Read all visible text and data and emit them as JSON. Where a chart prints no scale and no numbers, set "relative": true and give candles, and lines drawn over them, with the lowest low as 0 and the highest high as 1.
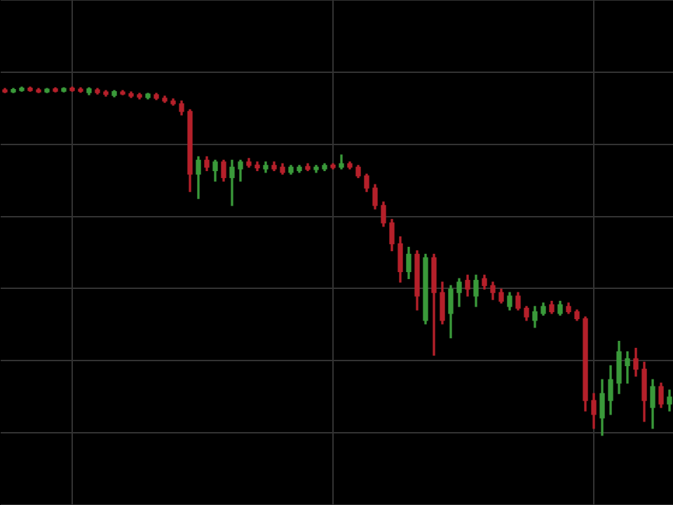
{
  "chart_data": {
    "type": "candlestick",
    "relative": true,
    "grid": true,
    "categories": [
      null,
      null,
      null,
      null,
      null,
      null,
      null,
      null,
      null,
      null,
      null,
      null,
      null,
      null,
      null,
      null,
      null,
      null,
      null,
      null,
      null,
      null,
      null,
      null,
      null,
      null,
      null,
      null,
      null,
      null,
      null,
      null,
      null,
      null,
      null,
      null,
      null,
      null,
      null,
      null,
      null,
      null,
      null,
      null,
      null,
      null,
      null,
      null,
      null,
      null,
      null,
      null,
      null,
      null,
      null,
      null,
      null,
      null,
      null,
      null,
      null,
      null,
      null,
      null,
      null,
      null,
      null,
      null,
      null,
      null,
      null,
      null,
      null,
      null,
      null,
      null,
      null,
      null,
      null,
      null
    ],
    "ohlc": [
      [
        0.992,
        0.996,
        0.984,
        0.986
      ],
      [
        0.986,
        0.996,
        0.984,
        0.993
      ],
      [
        0.99,
        1.0,
        0.988,
        0.997
      ],
      [
        0.997,
        1.0,
        0.988,
        0.99
      ],
      [
        0.992,
        0.996,
        0.984,
        0.986
      ],
      [
        0.986,
        0.996,
        0.984,
        0.994
      ],
      [
        0.995,
        0.998,
        0.986,
        0.988
      ],
      [
        0.988,
        0.998,
        0.986,
        0.996
      ],
      [
        0.997,
        1.0,
        0.988,
        0.99
      ],
      [
        0.994,
        0.998,
        0.985,
        0.988
      ],
      [
        0.984,
        0.998,
        0.978,
        0.995
      ],
      [
        0.992,
        0.996,
        0.98,
        0.984
      ],
      [
        0.986,
        0.99,
        0.974,
        0.979
      ],
      [
        0.976,
        0.99,
        0.972,
        0.987
      ],
      [
        0.986,
        0.99,
        0.978,
        0.98
      ],
      [
        0.981,
        0.986,
        0.97,
        0.974
      ],
      [
        0.978,
        0.982,
        0.966,
        0.971
      ],
      [
        0.97,
        0.982,
        0.966,
        0.98
      ],
      [
        0.978,
        0.982,
        0.964,
        0.968
      ],
      [
        0.968,
        0.974,
        0.956,
        0.96
      ],
      [
        0.96,
        0.966,
        0.948,
        0.952
      ],
      [
        0.952,
        0.96,
        0.92,
        0.93
      ],
      [
        0.93,
        0.935,
        0.7,
        0.75
      ],
      [
        0.75,
        0.8,
        0.68,
        0.79
      ],
      [
        0.79,
        0.8,
        0.76,
        0.77
      ],
      [
        0.76,
        0.79,
        0.73,
        0.785
      ],
      [
        0.785,
        0.79,
        0.73,
        0.74
      ],
      [
        0.74,
        0.79,
        0.66,
        0.77
      ],
      [
        0.765,
        0.79,
        0.73,
        0.785
      ],
      [
        0.785,
        0.795,
        0.77,
        0.775
      ],
      [
        0.776,
        0.785,
        0.76,
        0.768
      ],
      [
        0.765,
        0.785,
        0.755,
        0.775
      ],
      [
        0.775,
        0.785,
        0.76,
        0.765
      ],
      [
        0.77,
        0.78,
        0.75,
        0.755
      ],
      [
        0.755,
        0.775,
        0.75,
        0.77
      ],
      [
        0.76,
        0.775,
        0.755,
        0.77
      ],
      [
        0.772,
        0.78,
        0.76,
        0.764
      ],
      [
        0.763,
        0.775,
        0.755,
        0.77
      ],
      [
        0.765,
        0.78,
        0.76,
        0.775
      ],
      [
        0.776,
        0.78,
        0.765,
        0.769
      ],
      [
        0.77,
        0.805,
        0.765,
        0.78
      ],
      [
        0.78,
        0.785,
        0.765,
        0.77
      ],
      [
        0.77,
        0.775,
        0.74,
        0.745
      ],
      [
        0.745,
        0.75,
        0.7,
        0.71
      ],
      [
        0.71,
        0.72,
        0.65,
        0.66
      ],
      [
        0.66,
        0.67,
        0.6,
        0.61
      ],
      [
        0.61,
        0.62,
        0.53,
        0.55
      ],
      [
        0.55,
        0.57,
        0.44,
        0.47
      ],
      [
        0.47,
        0.54,
        0.45,
        0.52
      ],
      [
        0.52,
        0.53,
        0.36,
        0.4
      ],
      [
        0.33,
        0.52,
        0.32,
        0.51
      ],
      [
        0.51,
        0.52,
        0.23,
        0.41
      ],
      [
        0.41,
        0.44,
        0.32,
        0.33
      ],
      [
        0.35,
        0.43,
        0.28,
        0.42
      ],
      [
        0.41,
        0.45,
        0.37,
        0.44
      ],
      [
        0.445,
        0.46,
        0.4,
        0.42
      ],
      [
        0.4,
        0.46,
        0.37,
        0.445
      ],
      [
        0.45,
        0.46,
        0.42,
        0.43
      ],
      [
        0.43,
        0.44,
        0.39,
        0.41
      ],
      [
        0.41,
        0.42,
        0.38,
        0.385
      ],
      [
        0.37,
        0.41,
        0.36,
        0.4
      ],
      [
        0.4,
        0.41,
        0.36,
        0.365
      ],
      [
        0.365,
        0.37,
        0.33,
        0.34
      ],
      [
        0.33,
        0.37,
        0.31,
        0.355
      ],
      [
        0.35,
        0.38,
        0.345,
        0.37
      ],
      [
        0.375,
        0.385,
        0.35,
        0.355
      ],
      [
        0.35,
        0.385,
        0.345,
        0.375
      ],
      [
        0.37,
        0.38,
        0.35,
        0.355
      ],
      [
        0.355,
        0.36,
        0.33,
        0.335
      ],
      [
        0.335,
        0.34,
        0.07,
        0.1
      ],
      [
        0.1,
        0.12,
        0.02,
        0.06
      ],
      [
        0.05,
        0.16,
        0.0,
        0.12
      ],
      [
        0.1,
        0.2,
        0.06,
        0.16
      ],
      [
        0.15,
        0.27,
        0.12,
        0.24
      ],
      [
        0.2,
        0.24,
        0.15,
        0.22
      ],
      [
        0.22,
        0.25,
        0.17,
        0.19
      ],
      [
        0.19,
        0.21,
        0.04,
        0.1
      ],
      [
        0.08,
        0.16,
        0.02,
        0.14
      ],
      [
        0.14,
        0.15,
        0.08,
        0.09
      ],
      [
        0.09,
        0.13,
        0.07,
        0.11
      ]
    ],
    "colors": [
      "#b5202a",
      "#3a9a3a",
      "#3a9a3a",
      "#b5202a",
      "#b5202a",
      "#3a9a3a",
      "#b5202a",
      "#3a9a3a",
      "#b5202a",
      "#b5202a",
      "#3a9a3a",
      "#b5202a",
      "#b5202a",
      "#3a9a3a",
      "#b5202a",
      "#b5202a",
      "#b5202a",
      "#3a9a3a",
      "#b5202a",
      "#b5202a",
      "#b5202a",
      "#b5202a",
      "#b5202a",
      "#3a9a3a",
      "#b5202a",
      "#3a9a3a",
      "#b5202a",
      "#3a9a3a",
      "#3a9a3a",
      "#b5202a",
      "#b5202a",
      "#3a9a3a",
      "#b5202a",
      "#b5202a",
      "#3a9a3a",
      "#3a9a3a",
      "#b5202a",
      "#3a9a3a",
      "#3a9a3a",
      "#b5202a",
      "#3a9a3a",
      "#b5202a",
      "#b5202a",
      "#b5202a",
      "#b5202a",
      "#b5202a",
      "#b5202a",
      "#b5202a",
      "#3a9a3a",
      "#b5202a",
      "#3a9a3a",
      "#b5202a",
      "#b5202a",
      "#3a9a3a",
      "#3a9a3a",
      "#b5202a",
      "#3a9a3a",
      "#b5202a",
      "#b5202a",
      "#b5202a",
      "#3a9a3a",
      "#b5202a",
      "#b5202a",
      "#3a9a3a",
      "#3a9a3a",
      "#b5202a",
      "#3a9a3a",
      "#b5202a",
      "#b5202a",
      "#b5202a",
      "#b5202a",
      "#3a9a3a",
      "#3a9a3a",
      "#3a9a3a",
      "#3a9a3a",
      "#b5202a",
      "#b5202a",
      "#3a9a3a",
      "#b5202a",
      "#3a9a3a"
    ]
  }
}
